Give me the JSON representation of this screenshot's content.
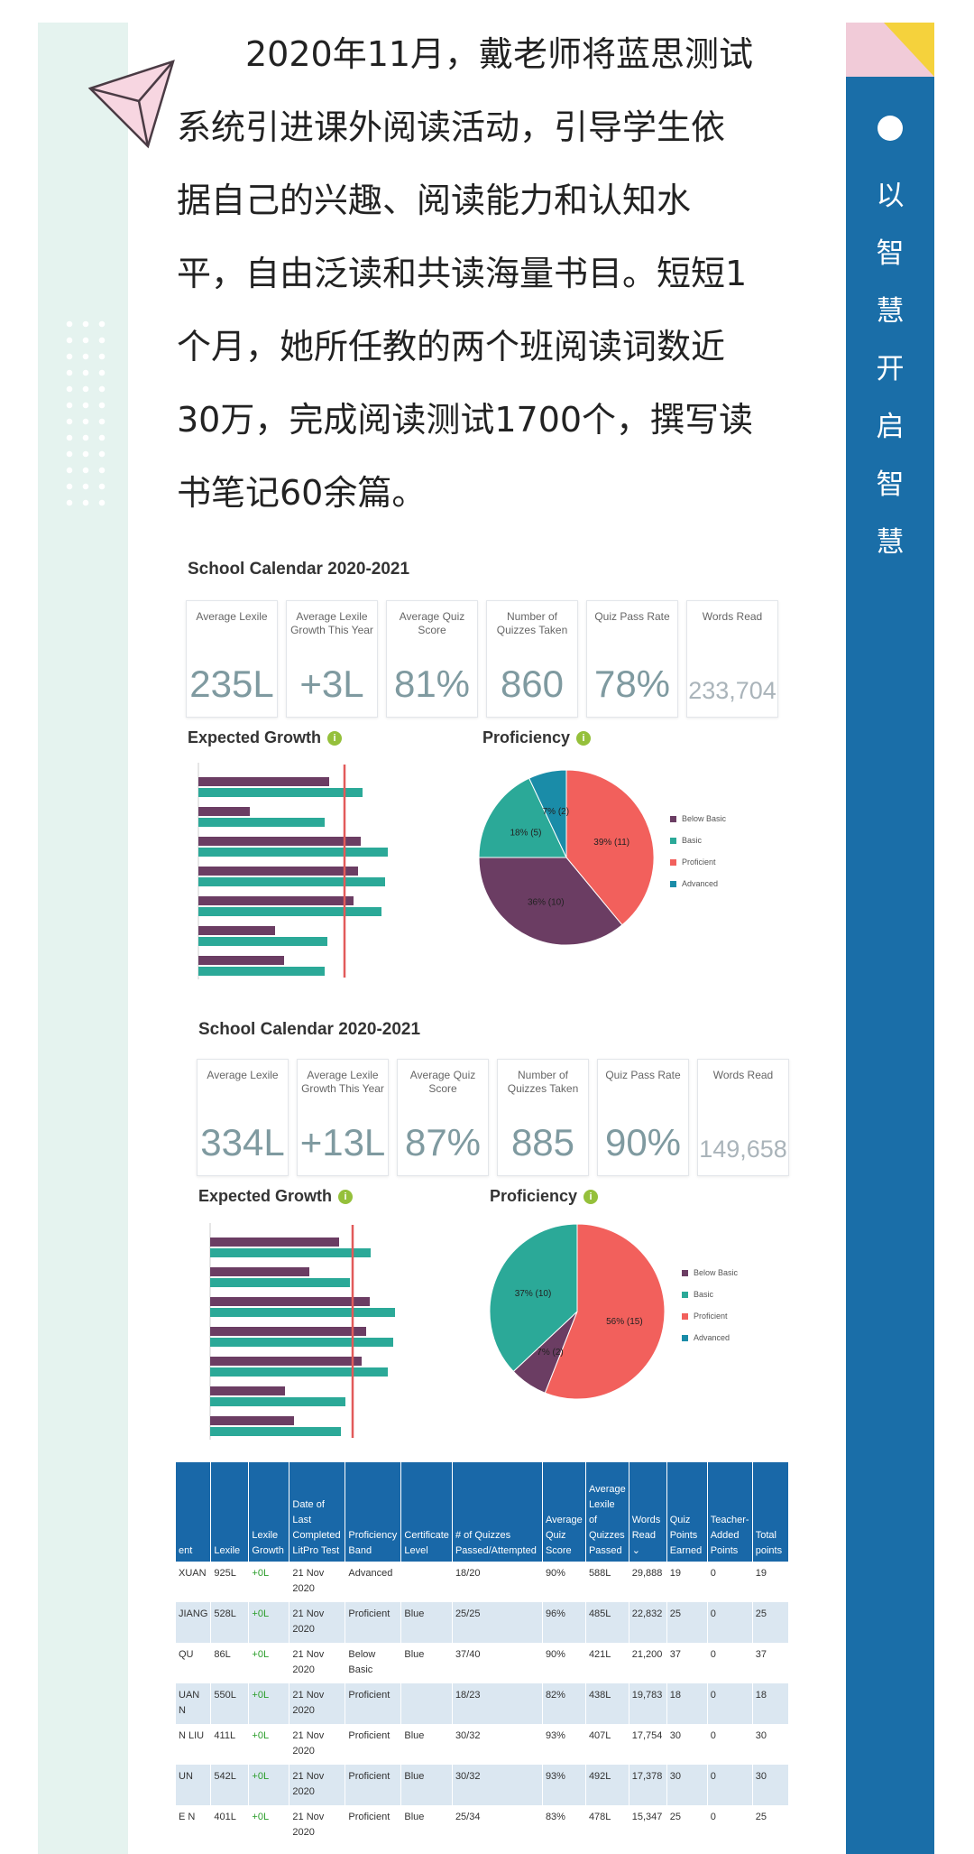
{
  "sidebar": {
    "vertical_text": [
      "以",
      "智",
      "慧",
      "开",
      "启",
      "智",
      "慧"
    ]
  },
  "article": {
    "lines": [
      "2020年11月，戴老师将蓝思测试",
      "系统引进课外阅读活动，引导学生依",
      "据自己的兴趣、阅读能力和认知水",
      "平，自由泛读和共读海量书目。短短1",
      "个月，她所任教的两个班阅读词数近",
      "30万，完成阅读测试1700个，撰写读",
      "书笔记60余篇。"
    ]
  },
  "colors": {
    "below_basic": "#6b3d63",
    "basic": "#2ba998",
    "proficient": "#f2605c",
    "advanced": "#1a8ca8",
    "target_line": "#e25a5a",
    "table_header": "#1968a8",
    "sidebar": "#1a6ea8"
  },
  "dashboards": [
    {
      "title": "School Calendar 2020-2021",
      "metrics": [
        {
          "label": "Average Lexile",
          "value": "235L"
        },
        {
          "label": "Average Lexile Growth This Year",
          "value": "+3L"
        },
        {
          "label": "Average Quiz Score",
          "value": "81%"
        },
        {
          "label": "Number of Quizzes Taken",
          "value": "860"
        },
        {
          "label": "Quiz Pass Rate",
          "value": "78%"
        },
        {
          "label": "Words Read",
          "value": "233,704"
        }
      ],
      "expected_growth_title": "Expected Growth",
      "proficiency_title": "Proficiency",
      "legend": [
        "Below Basic",
        "Basic",
        "Proficient",
        "Advanced"
      ],
      "slice_labels": [
        "39% (11)",
        "36% (10)",
        "18% (5)",
        "7% (2)"
      ]
    },
    {
      "title": "School Calendar 2020-2021",
      "metrics": [
        {
          "label": "Average Lexile",
          "value": "334L"
        },
        {
          "label": "Average Lexile Growth This Year",
          "value": "+13L"
        },
        {
          "label": "Average Quiz Score",
          "value": "87%"
        },
        {
          "label": "Number of Quizzes Taken",
          "value": "885"
        },
        {
          "label": "Quiz Pass Rate",
          "value": "90%"
        },
        {
          "label": "Words Read",
          "value": "149,658"
        }
      ],
      "expected_growth_title": "Expected Growth",
      "proficiency_title": "Proficiency",
      "legend": [
        "Below Basic",
        "Basic",
        "Proficient",
        "Advanced"
      ],
      "slice_labels": [
        "56% (15)",
        "37% (10)",
        "7% (2)"
      ]
    }
  ],
  "chart_data": [
    {
      "type": "bar",
      "orientation": "horizontal",
      "series": [
        {
          "name": "",
          "values": [
            145,
            57,
            180,
            177,
            172,
            85,
            95
          ]
        },
        {
          "name": "",
          "values": [
            182,
            140,
            210,
            207,
            203,
            143,
            140
          ]
        }
      ],
      "target": 162
    },
    {
      "type": "pie",
      "categories": [
        "Below Basic",
        "Basic",
        "Proficient",
        "Advanced"
      ],
      "values": [
        36,
        18,
        39,
        7
      ],
      "labels": [
        "36% (10)",
        "18% (5)",
        "39% (11)",
        "7% (2)"
      ]
    },
    {
      "type": "bar",
      "orientation": "horizontal",
      "series": [
        {
          "name": "",
          "values": [
            143,
            110,
            177,
            173,
            168,
            83,
            93
          ]
        },
        {
          "name": "",
          "values": [
            178,
            155,
            205,
            203,
            197,
            150,
            145
          ]
        }
      ],
      "target": 158
    },
    {
      "type": "pie",
      "categories": [
        "Below Basic",
        "Basic",
        "Proficient",
        "Advanced"
      ],
      "values": [
        7,
        37,
        56,
        0
      ],
      "labels": [
        "7% (2)",
        "37% (10)",
        "56% (15)",
        ""
      ]
    }
  ],
  "table": {
    "headers": [
      "ent",
      "Lexile",
      "Lexile Growth",
      "Date of Last Completed LitPro Test",
      "Proficiency Band",
      "Certificate Level",
      "# of Quizzes Passed/Attempted",
      "Average Quiz Score",
      "Average Lexile of Quizzes Passed",
      "Words Read ⌄",
      "Quiz Points Earned",
      "Teacher-Added Points",
      "Total points"
    ],
    "rows": [
      [
        "XUAN",
        "925L",
        "+0L",
        "21 Nov 2020",
        "Advanced",
        "",
        "18/20",
        "90%",
        "588L",
        "29,888",
        "19",
        "0",
        "19"
      ],
      [
        "JIANG",
        "528L",
        "+0L",
        "21 Nov 2020",
        "Proficient",
        "Blue",
        "25/25",
        "96%",
        "485L",
        "22,832",
        "25",
        "0",
        "25"
      ],
      [
        "QU",
        "86L",
        "+0L",
        "21 Nov 2020",
        "Below Basic",
        "Blue",
        "37/40",
        "90%",
        "421L",
        "21,200",
        "37",
        "0",
        "37"
      ],
      [
        "UAN N",
        "550L",
        "+0L",
        "21 Nov 2020",
        "Proficient",
        "",
        "18/23",
        "82%",
        "438L",
        "19,783",
        "18",
        "0",
        "18"
      ],
      [
        "N LIU",
        "411L",
        "+0L",
        "21 Nov 2020",
        "Proficient",
        "Blue",
        "30/32",
        "93%",
        "407L",
        "17,754",
        "30",
        "0",
        "30"
      ],
      [
        "UN",
        "542L",
        "+0L",
        "21 Nov 2020",
        "Proficient",
        "Blue",
        "30/32",
        "93%",
        "492L",
        "17,378",
        "30",
        "0",
        "30"
      ],
      [
        "E N",
        "401L",
        "+0L",
        "21 Nov 2020",
        "Proficient",
        "Blue",
        "25/34",
        "83%",
        "478L",
        "15,347",
        "25",
        "0",
        "25"
      ]
    ]
  }
}
